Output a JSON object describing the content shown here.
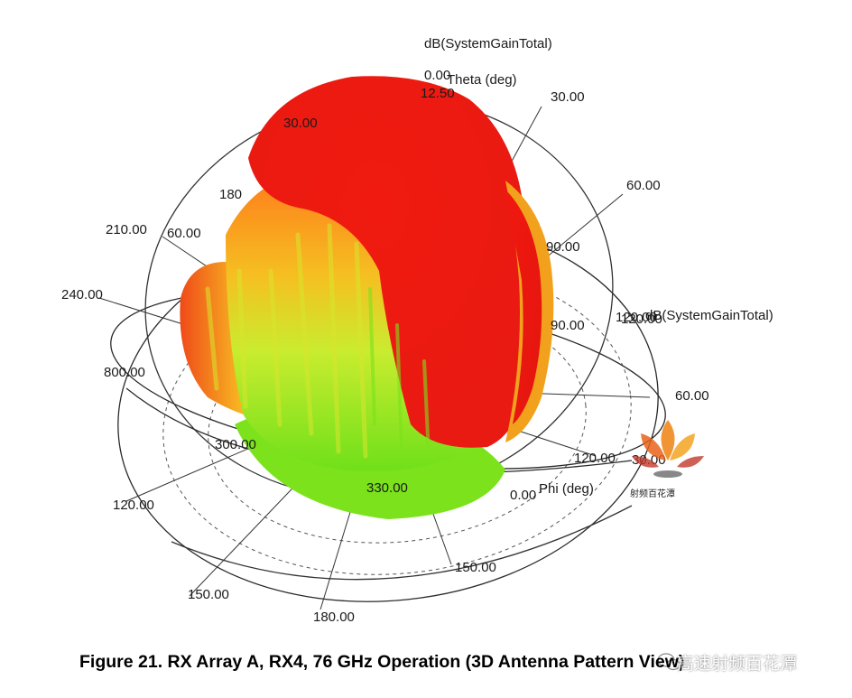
{
  "figure": {
    "caption": "Figure 21. RX Array A, RX4, 76 GHz Operation (3D Antenna Pattern View)",
    "axis_titles": {
      "top": "dB(SystemGainTotal)",
      "theta": "Theta (deg)",
      "right": "dB(SystemGainTotal)",
      "phi": "Phi (deg)"
    },
    "gain_labels": [
      "0.00",
      "12.50"
    ],
    "theta_labels": [
      "30.00",
      "60.00",
      "90.00",
      "120.00"
    ],
    "phi_labels": [
      "30.00",
      "60.00",
      "120.00",
      "150.00",
      "180.00",
      "210.00",
      "240.00",
      "300.00",
      "330.00",
      "0.00"
    ],
    "overlap_labels": {
      "a": "30.00",
      "b": "180",
      "c": "60.00",
      "d": "800.00",
      "e": "90.00",
      "f": "120.00",
      "g": "330.00"
    },
    "colors": {
      "high": "#ee1b12",
      "mid": "#f7a21a",
      "low": "#e6ee3a",
      "floor": "#7be21c"
    }
  },
  "watermark": {
    "channel_text": "高速射频百花潭",
    "logo_text": "射频百花潭",
    "logo_icon": "lotus-icon",
    "chat_icon": "wechat-icon"
  }
}
